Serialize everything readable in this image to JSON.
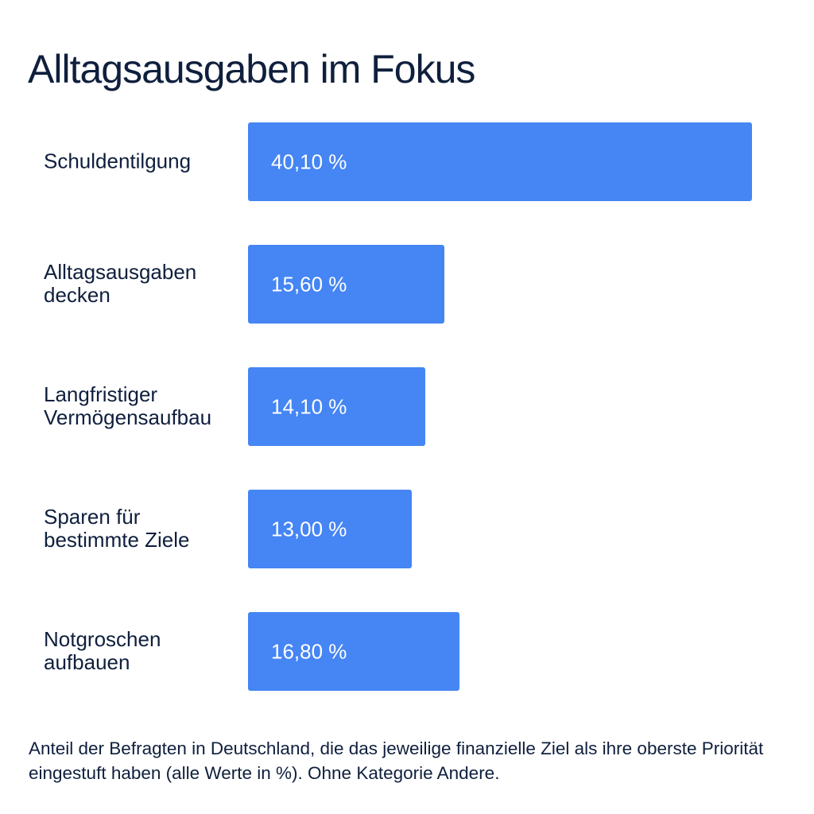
{
  "title": "Alltagsausgaben im Fokus",
  "footnote": "Anteil der Befragten in Deutschland, die das jeweilige finanzielle Ziel als ihre oberste Priorität eingestuft haben (alle Werte in %). Ohne Kategorie Andere.",
  "colors": {
    "bar": "#4585f4",
    "text": "#0f1f3d",
    "bar_label": "#ffffff"
  },
  "chart_data": {
    "type": "bar",
    "orientation": "horizontal",
    "categories": [
      [
        "Schuldentilgung"
      ],
      [
        "Alltagsausgaben",
        "decken"
      ],
      [
        "Langfristiger",
        "Vermögensaufbau"
      ],
      [
        "Sparen für",
        "bestimmte Ziele"
      ],
      [
        "Notgroschen",
        "aufbauen"
      ]
    ],
    "values": [
      40.1,
      15.6,
      14.1,
      13.0,
      16.8
    ],
    "value_labels": [
      "40,10 %",
      "15,60 %",
      "14,10 %",
      "13,00 %",
      "16,80 %"
    ],
    "xlim": [
      0,
      40.1
    ],
    "grid": false,
    "legend": "none"
  }
}
